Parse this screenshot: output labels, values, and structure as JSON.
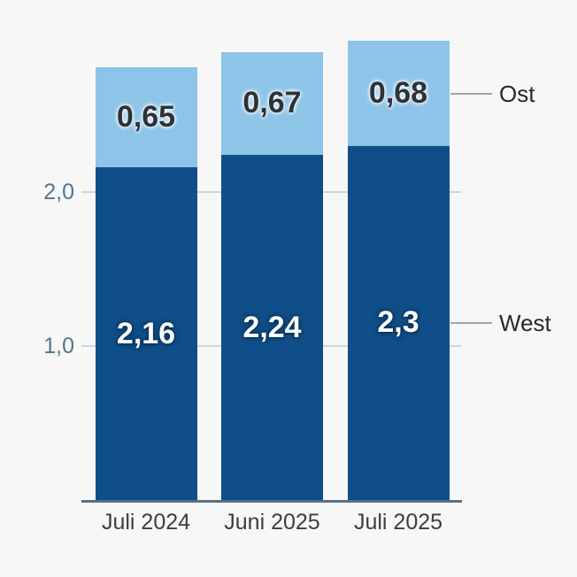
{
  "chart_data": {
    "type": "bar",
    "stacked": true,
    "title": "",
    "categories": [
      "Juli 2024",
      "Juni 2025",
      "Juli 2025"
    ],
    "series": [
      {
        "name": "West",
        "color": "#0f4e88",
        "values": [
          2.16,
          2.24,
          2.3
        ],
        "value_labels": [
          "2,16",
          "2,24",
          "2,3"
        ]
      },
      {
        "name": "Ost",
        "color": "#8ec4e8",
        "values": [
          0.65,
          0.67,
          0.68
        ],
        "value_labels": [
          "0,65",
          "0,67",
          "0,68"
        ]
      }
    ],
    "yticks": [
      {
        "value": 1.0,
        "label": "1,0"
      },
      {
        "value": 2.0,
        "label": "2,0"
      }
    ],
    "ylim": [
      0,
      3.1
    ],
    "grid": true,
    "legend": {
      "position": "right",
      "entries": [
        "Ost",
        "West"
      ]
    },
    "colors": {
      "background": "#f7f7f7",
      "axis_line": "#587187",
      "gridline": "#cdd6db",
      "tick_label": "#54768c",
      "category_label": "#3b3e42",
      "legend_label": "#26292d",
      "legend_connector": "#a0a5aa",
      "value_label_on_light": "#2e3236"
    }
  }
}
